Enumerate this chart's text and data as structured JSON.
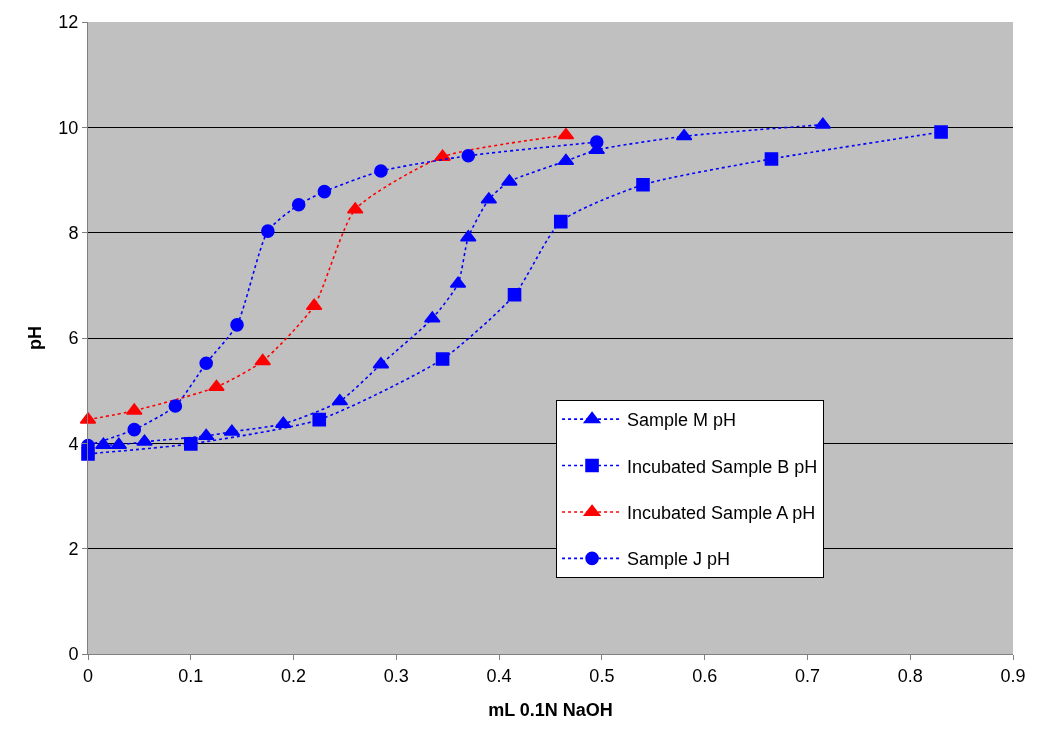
{
  "chart_data": {
    "type": "line",
    "xlabel": "mL 0.1N NaOH",
    "ylabel": "pH",
    "xlim": [
      0,
      0.9
    ],
    "xticks": [
      0,
      0.1,
      0.2,
      0.3,
      0.4,
      0.5,
      0.6,
      0.7,
      0.8,
      0.9
    ],
    "ylim": [
      0,
      12
    ],
    "yticks": [
      0,
      2,
      4,
      6,
      8,
      10,
      12
    ],
    "grid": "y",
    "legend": "bottom right",
    "line_style": "dotted",
    "series": [
      {
        "name": "Sample M pH",
        "color": "#0000ff",
        "marker": "triangle",
        "x": [
          0.015,
          0.03,
          0.055,
          0.115,
          0.14,
          0.19,
          0.245,
          0.285,
          0.335,
          0.36,
          0.37,
          0.39,
          0.41,
          0.465,
          0.495,
          0.58,
          0.715
        ],
        "values": [
          3.97,
          3.97,
          4.03,
          4.14,
          4.22,
          4.37,
          4.8,
          5.5,
          6.37,
          7.03,
          7.91,
          8.63,
          8.97,
          9.36,
          9.57,
          9.83,
          10.05
        ]
      },
      {
        "name": "Incubated Sample B pH",
        "color": "#0000ff",
        "marker": "square",
        "x": [
          0,
          0.1,
          0.225,
          0.345,
          0.415,
          0.46,
          0.54,
          0.665,
          0.83
        ],
        "values": [
          3.8,
          3.99,
          4.45,
          5.6,
          6.82,
          8.21,
          8.91,
          9.4,
          9.91
        ]
      },
      {
        "name": "Incubated Sample A pH",
        "color": "#ff0000",
        "marker": "triangle",
        "x": [
          0,
          0.045,
          0.125,
          0.17,
          0.22,
          0.26,
          0.345,
          0.465
        ],
        "values": [
          4.45,
          4.62,
          5.07,
          5.56,
          6.61,
          8.44,
          9.44,
          9.85
        ]
      },
      {
        "name": "Sample J pH",
        "color": "#0000ff",
        "marker": "circle",
        "x": [
          0,
          0.045,
          0.085,
          0.115,
          0.145,
          0.175,
          0.205,
          0.23,
          0.285,
          0.37,
          0.495
        ],
        "values": [
          3.96,
          4.26,
          4.71,
          5.52,
          6.25,
          8.03,
          8.53,
          8.78,
          9.17,
          9.46,
          9.72
        ]
      }
    ]
  }
}
